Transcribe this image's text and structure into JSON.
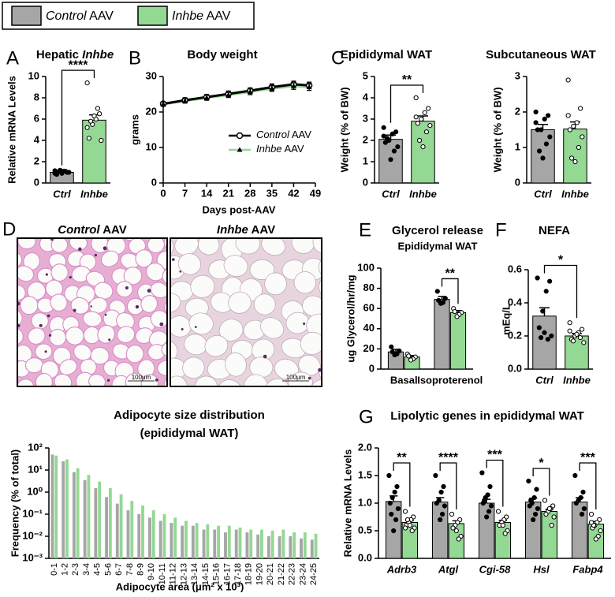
{
  "legend": {
    "entries": [
      {
        "name": "Control AAV",
        "color": "#a6a6a6"
      },
      {
        "name": "Inhbe AAV",
        "color": "#93d893"
      }
    ]
  },
  "histology": {
    "panel": "D",
    "images": [
      {
        "title": "Control AAV",
        "scale_bar": "100μm"
      },
      {
        "title": "Inhbe AAV",
        "scale_bar": "100μm"
      }
    ]
  },
  "chart_data": [
    {
      "type": "bar",
      "panel": "A",
      "title": "Hepatic Inhbe",
      "y_label": "Relative mRNA Levels",
      "categories": [
        "Ctrl",
        "Inhbe"
      ],
      "colors": [
        "#a6a6a6",
        "#93d893"
      ],
      "values": [
        1.0,
        5.9
      ],
      "errors": [
        0.05,
        0.5
      ],
      "points": [
        [
          0.9,
          1.0,
          1.1,
          1.2,
          0.8,
          1.0,
          1.1,
          0.9,
          1.05,
          1.15
        ],
        [
          9.4,
          6.5,
          6.0,
          5.5,
          4.2,
          4.0,
          7.0,
          6.3,
          5.8,
          5.2
        ]
      ],
      "significance": "****",
      "ylim": [
        0,
        10
      ],
      "yticks": [
        0,
        2,
        4,
        6,
        8,
        10
      ]
    },
    {
      "type": "line",
      "panel": "B",
      "title": "Body weight",
      "x_label": "Days post-AAV",
      "y_label": "grams",
      "xlim": [
        0,
        49
      ],
      "xticks": [
        0,
        7,
        14,
        21,
        28,
        35,
        42,
        49
      ],
      "ylim": [
        0,
        30
      ],
      "yticks": [
        0,
        10,
        20,
        30
      ],
      "series": [
        {
          "name": "Control AAV",
          "color": "#000000",
          "marker": "circle",
          "x": [
            0,
            7,
            14,
            21,
            28,
            35,
            42,
            47
          ],
          "values": [
            22.3,
            23.3,
            24.2,
            25.1,
            26.0,
            27.0,
            27.8,
            27.5
          ],
          "errors": [
            0.6,
            0.7,
            0.7,
            0.8,
            0.8,
            0.9,
            0.9,
            0.9
          ]
        },
        {
          "name": "Inhbe AAV",
          "color": "#93d893",
          "marker": "triangle",
          "x": [
            0,
            7,
            14,
            21,
            28,
            35,
            42,
            47
          ],
          "values": [
            22.2,
            23.1,
            24.0,
            24.8,
            25.7,
            26.6,
            27.3,
            27.0
          ],
          "errors": [
            0.6,
            0.6,
            0.7,
            0.7,
            0.8,
            0.8,
            0.9,
            0.9
          ]
        }
      ]
    },
    {
      "type": "bar",
      "panel": "C",
      "title": "Epididymal WAT",
      "y_label": "Weight (% of BW)",
      "categories": [
        "Ctrl",
        "Inhbe"
      ],
      "colors": [
        "#a6a6a6",
        "#93d893"
      ],
      "values": [
        2.05,
        2.9
      ],
      "errors": [
        0.2,
        0.25
      ],
      "points": [
        [
          2.6,
          2.4,
          2.3,
          2.0,
          1.9,
          1.7,
          1.5,
          1.1,
          2.1,
          2.2
        ],
        [
          4.0,
          3.5,
          3.3,
          3.0,
          2.8,
          2.7,
          2.4,
          1.7,
          2.0,
          3.1
        ]
      ],
      "significance": "**",
      "ylim": [
        0,
        5
      ],
      "yticks": [
        0,
        1,
        2,
        3,
        4,
        5
      ]
    },
    {
      "type": "bar",
      "title": "Subcutaneous WAT",
      "y_label": "Weight (% of BW)",
      "categories": [
        "Ctrl",
        "Inhbe"
      ],
      "colors": [
        "#a6a6a6",
        "#93d893"
      ],
      "values": [
        1.5,
        1.52
      ],
      "errors": [
        0.15,
        0.2
      ],
      "points": [
        [
          2.0,
          1.9,
          1.8,
          1.5,
          1.5,
          1.3,
          1.1,
          0.7,
          0.9,
          1.7
        ],
        [
          2.9,
          2.1,
          1.7,
          1.6,
          1.5,
          1.3,
          1.0,
          0.6,
          0.7,
          1.9
        ]
      ],
      "ylim": [
        0,
        3
      ],
      "yticks": [
        0,
        1,
        2,
        3
      ]
    },
    {
      "type": "bar",
      "title": "Adipocyte size distribution",
      "subtitle": "(epididymal WAT)",
      "x_label": "Adipocyte area (μm² x 10³)",
      "y_label": "Frequency (% of total)",
      "log_scale": true,
      "categories": [
        "0-1",
        "1-2",
        "2-3",
        "3-4",
        "4-5",
        "5-6",
        "6-7",
        "7-8",
        "8-9",
        "9-10",
        "10-11",
        "11-12",
        "12-13",
        "13-14",
        "14-15",
        "15-16",
        "16-17",
        "17-18",
        "18-19",
        "19-20",
        "20-21",
        "21-22",
        "22-23",
        "23-24",
        "24-25"
      ],
      "series": [
        {
          "color": "#a6a6a6",
          "values": [
            50,
            25,
            8,
            3.5,
            1.5,
            0.6,
            0.3,
            0.15,
            0.1,
            0.07,
            0.05,
            0.04,
            0.03,
            0.03,
            0.02,
            0.02,
            0.015,
            0.02,
            0.015,
            0.012,
            0.01,
            0.01,
            0.01,
            0.008,
            0.007
          ]
        },
        {
          "color": "#93d893",
          "values": [
            45,
            30,
            12,
            6,
            3,
            1.5,
            0.8,
            0.4,
            0.25,
            0.15,
            0.1,
            0.07,
            0.05,
            0.04,
            0.035,
            0.03,
            0.03,
            0.025,
            0.02,
            0.02,
            0.018,
            0.02,
            0.015,
            0.015,
            0.013
          ]
        }
      ],
      "ylim": [
        0.001,
        100
      ],
      "yticks": [
        {
          "value": 0.001,
          "label": "10⁻³"
        },
        {
          "value": 0.01,
          "label": "10⁻²"
        },
        {
          "value": 0.1,
          "label": "10⁻¹"
        },
        {
          "value": 1,
          "label": "10⁰"
        },
        {
          "value": 10,
          "label": "10¹"
        },
        {
          "value": 100,
          "label": "10²"
        }
      ]
    },
    {
      "type": "bar",
      "panel": "E",
      "title": "Glycerol release",
      "subtitle": "Epididymal WAT",
      "y_label": "ug Glycerol/hr/mg",
      "categories": [
        "Basal",
        "Isoproterenol"
      ],
      "series": [
        {
          "color": "#a6a6a6",
          "values": [
            17,
            69
          ],
          "errors": [
            2.5,
            3
          ],
          "points": [
            [
              22,
              18,
              15,
              14,
              17
            ],
            [
              77,
              70,
              66,
              65,
              68
            ]
          ]
        },
        {
          "color": "#93d893",
          "values": [
            12,
            56
          ],
          "errors": [
            1.5,
            2
          ],
          "points": [
            [
              15,
              12,
              10,
              9,
              13
            ],
            [
              60,
              56,
              54,
              52,
              57
            ]
          ]
        }
      ],
      "significance": [
        null,
        "**"
      ],
      "ylim": [
        0,
        100
      ],
      "yticks": [
        0,
        20,
        40,
        60,
        80,
        100
      ]
    },
    {
      "type": "bar",
      "panel": "F",
      "title": "NEFA",
      "y_label": "mEq/L",
      "categories": [
        "Ctrl",
        "Inhbe"
      ],
      "colors": [
        "#a6a6a6",
        "#93d893"
      ],
      "values": [
        0.32,
        0.2
      ],
      "errors": [
        0.05,
        0.015
      ],
      "points": [
        [
          0.55,
          0.53,
          0.47,
          0.35,
          0.25,
          0.2,
          0.18,
          0.22,
          0.19
        ],
        [
          0.28,
          0.24,
          0.22,
          0.2,
          0.18,
          0.16,
          0.19,
          0.21,
          0.17,
          0.23
        ]
      ],
      "significance": "*",
      "ylim": [
        0,
        0.6
      ],
      "yticks": [
        {
          "value": 0,
          "label": "0.0"
        },
        0.2,
        0.4,
        0.6
      ]
    },
    {
      "type": "bar",
      "panel": "G",
      "title": "Lipolytic genes in epididymal WAT",
      "y_label": "Relative mRNA Levels",
      "categories": [
        "Adrb3",
        "Atgl",
        "Cgi-58",
        "Hsl",
        "Fabp4"
      ],
      "series": [
        {
          "color": "#a6a6a6",
          "values": [
            1.03,
            1.02,
            1.0,
            1.02,
            1.02
          ],
          "errors": [
            0.1,
            0.08,
            0.07,
            0.07,
            0.08
          ],
          "points": [
            [
              1.5,
              1.3,
              1.2,
              1.1,
              1.0,
              0.9,
              0.7,
              0.5,
              0.8
            ],
            [
              1.5,
              1.3,
              1.2,
              1.05,
              1.0,
              0.95,
              0.8,
              0.7
            ],
            [
              1.55,
              1.3,
              1.15,
              1.1,
              1.0,
              0.95,
              0.85,
              0.75,
              1.05
            ],
            [
              1.4,
              1.25,
              1.1,
              1.0,
              0.95,
              0.9,
              0.8,
              0.7,
              1.05
            ],
            [
              1.5,
              1.2,
              1.1,
              1.05,
              1.0,
              0.9,
              0.8
            ]
          ]
        },
        {
          "color": "#93d893",
          "values": [
            0.65,
            0.63,
            0.65,
            0.85,
            0.62
          ],
          "errors": [
            0.04,
            0.05,
            0.04,
            0.04,
            0.05
          ],
          "points": [
            [
              0.85,
              0.75,
              0.7,
              0.65,
              0.6,
              0.55,
              0.5,
              0.6,
              0.7,
              0.55
            ],
            [
              0.8,
              0.7,
              0.65,
              0.6,
              0.55,
              0.4,
              0.35,
              0.5
            ],
            [
              0.85,
              0.75,
              0.7,
              0.65,
              0.6,
              0.5,
              0.45,
              0.6
            ],
            [
              1.05,
              0.95,
              0.9,
              0.85,
              0.8,
              0.75,
              0.6,
              0.9
            ],
            [
              0.8,
              0.7,
              0.65,
              0.6,
              0.55,
              0.5,
              0.4,
              0.35,
              0.6,
              0.65
            ]
          ]
        }
      ],
      "significance": [
        "**",
        "****",
        "***",
        "*",
        "***"
      ],
      "ylim": [
        0,
        2
      ],
      "yticks": [
        {
          "value": 0,
          "label": "0.0"
        },
        0.5,
        {
          "value": 1,
          "label": "1.0"
        },
        1.5,
        {
          "value": 2,
          "label": "2.0"
        }
      ]
    }
  ]
}
